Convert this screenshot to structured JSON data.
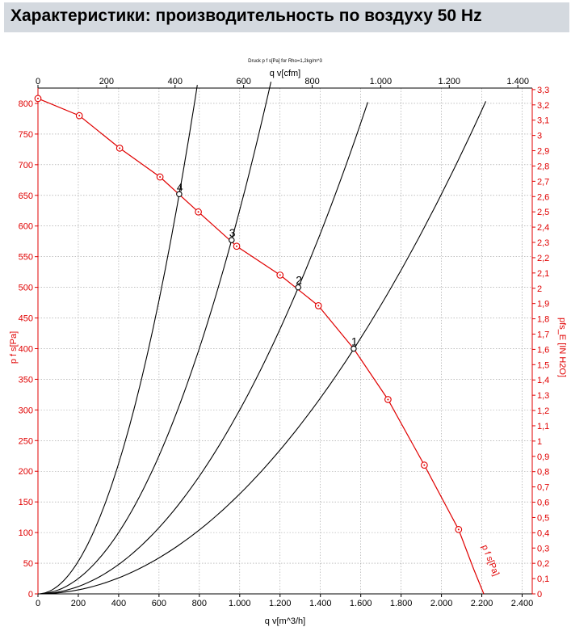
{
  "header": {
    "title": "Характеристики: производительность по воздуху 50 Hz"
  },
  "chart_data": {
    "type": "line",
    "subtitle": "Druck p f s[Pa] for Rho=1,2kg/m^3",
    "x_axis_bottom": {
      "label": "q v[m^3/h]",
      "range": [
        0,
        2450
      ],
      "ticks": [
        "0",
        "200",
        "400",
        "600",
        "800",
        "1.000",
        "1.200",
        "1.400",
        "1.600",
        "1.800",
        "2.000",
        "2.200",
        "2.400"
      ],
      "tick_values": [
        0,
        200,
        400,
        600,
        800,
        1000,
        1200,
        1400,
        1600,
        1800,
        2000,
        2200,
        2400
      ]
    },
    "x_axis_top": {
      "label": "q v[cfm]",
      "range": [
        0,
        1442
      ],
      "ticks": [
        "0",
        "200",
        "400",
        "600",
        "800",
        "1.000",
        "1.200",
        "1.400"
      ],
      "tick_values": [
        0,
        200,
        400,
        600,
        800,
        1000,
        1200,
        1400
      ]
    },
    "y_axis_left": {
      "label": "p f s[Pa]",
      "range": [
        0,
        825
      ],
      "ticks": [
        "0",
        "50",
        "100",
        "150",
        "200",
        "250",
        "300",
        "350",
        "400",
        "450",
        "500",
        "550",
        "600",
        "650",
        "700",
        "750",
        "800"
      ],
      "tick_values": [
        0,
        50,
        100,
        150,
        200,
        250,
        300,
        350,
        400,
        450,
        500,
        550,
        600,
        650,
        700,
        750,
        800
      ]
    },
    "y_axis_right": {
      "label": "pfs_E [IN H2O]",
      "range": [
        0,
        3.31
      ],
      "ticks": [
        "0",
        "0,1",
        "0,2",
        "0,3",
        "0,4",
        "0,5",
        "0,6",
        "0,7",
        "0,8",
        "0,9",
        "1",
        "1,1",
        "1,2",
        "1,3",
        "1,4",
        "1,5",
        "1,6",
        "1,7",
        "1,8",
        "1,9",
        "2",
        "2,1",
        "2,2",
        "2,3",
        "2,4",
        "2,5",
        "2,6",
        "2,7",
        "2,8",
        "2,9",
        "3",
        "3,1",
        "3,2",
        "3,3"
      ],
      "tick_values": [
        0,
        0.1,
        0.2,
        0.3,
        0.4,
        0.5,
        0.6,
        0.7,
        0.8,
        0.9,
        1,
        1.1,
        1.2,
        1.3,
        1.4,
        1.5,
        1.6,
        1.7,
        1.8,
        1.9,
        2,
        2.1,
        2.2,
        2.3,
        2.4,
        2.5,
        2.6,
        2.7,
        2.8,
        2.9,
        3,
        3.1,
        3.2,
        3.3
      ]
    },
    "grid": true,
    "fan_curve": {
      "name": "p f s[Pa]",
      "color": "#e00000",
      "x": [
        0,
        205,
        405,
        605,
        795,
        985,
        1200,
        1390,
        1565,
        1735,
        1915,
        2085,
        2160,
        2210
      ],
      "y": [
        808,
        780,
        727,
        680,
        623,
        567,
        520,
        470,
        400,
        317,
        210,
        105,
        40,
        0
      ],
      "markers_x": [
        0,
        205,
        405,
        605,
        795,
        985,
        1200,
        1390,
        1735,
        1915,
        2085
      ],
      "markers_y": [
        808,
        780,
        727,
        680,
        623,
        567,
        520,
        470,
        317,
        210,
        105
      ]
    },
    "system_curves": [
      {
        "label": "1",
        "k": 0.000163,
        "x_max": 2220
      },
      {
        "label": "2",
        "k": 0.0003,
        "x_max": 1635
      },
      {
        "label": "3",
        "k": 0.000626,
        "x_max": 1155
      },
      {
        "label": "4",
        "k": 0.00133,
        "x_max": 790
      }
    ],
    "operating_points": [
      {
        "label": "1",
        "x": 1565,
        "y": 400
      },
      {
        "label": "2",
        "x": 1290,
        "y": 500
      },
      {
        "label": "3",
        "x": 960,
        "y": 577
      },
      {
        "label": "4",
        "x": 700,
        "y": 652
      }
    ]
  }
}
